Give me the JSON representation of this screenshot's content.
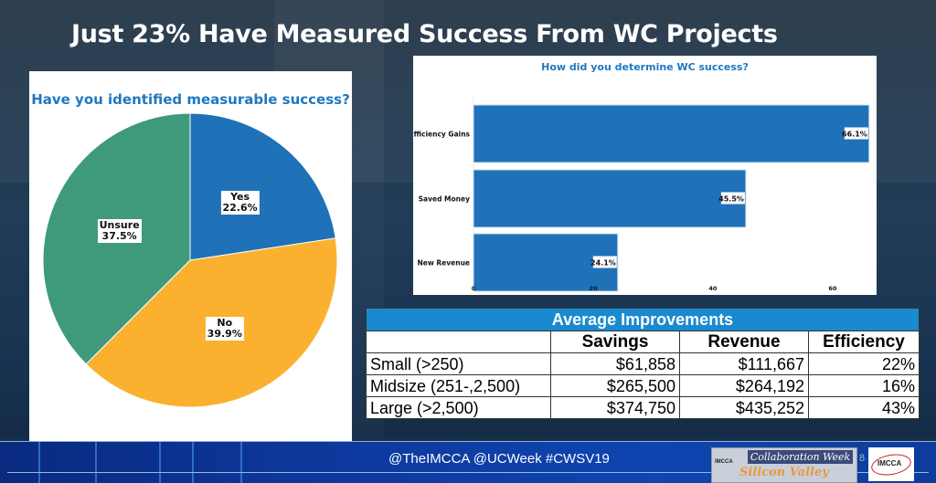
{
  "slide_title": "Just 23% Have Measured Success From WC Projects",
  "colors": {
    "blue": "#1f72b8",
    "orange": "#fbb12f",
    "green": "#3f9a7c",
    "title_blue": "#1f78c0",
    "table_header": "#1a8ad0"
  },
  "chart_data": [
    {
      "type": "pie",
      "title": "Have you identified measurable success?",
      "slices": [
        {
          "label": "Yes",
          "value": 22.6,
          "display": "22.6%",
          "color": "#1f72b8"
        },
        {
          "label": "No",
          "value": 39.9,
          "display": "39.9%",
          "color": "#fbb12f"
        },
        {
          "label": "Unsure",
          "value": 37.5,
          "display": "37.5%",
          "color": "#3f9a7c"
        }
      ]
    },
    {
      "type": "bar",
      "orientation": "horizontal",
      "title": "How did you determine WC success?",
      "categories": [
        "Efficiency Gains",
        "Saved Money",
        "New Revenue"
      ],
      "values": [
        66.1,
        45.5,
        24.1
      ],
      "data_labels": [
        "66.1%",
        "45.5%",
        "24.1%"
      ],
      "xlim": [
        0,
        67.2
      ],
      "xticks": [
        0,
        20,
        40,
        60
      ],
      "xtick_labels": [
        "0",
        "20",
        "40",
        "60"
      ],
      "color": "#1f72b8",
      "grid": false
    },
    {
      "type": "table",
      "title": "Average Improvements",
      "columns": [
        "",
        "Savings",
        "Revenue",
        "Efficiency"
      ],
      "rows": [
        [
          "Small (>250)",
          "$61,858",
          "$111,667",
          "22%"
        ],
        [
          "Midsize (251-,2,500)",
          "$265,500",
          "$264,192",
          "16%"
        ],
        [
          "Large (>2,500)",
          "$374,750",
          "$435,252",
          "43%"
        ]
      ]
    }
  ],
  "footer": {
    "tags": "@TheIMCCA  @UCWeek   #CWSV19",
    "page_number": "8",
    "logo_top": "Collaboration Week",
    "logo_bottom": "Silicon Valley",
    "logo_org": "IMCCA"
  }
}
